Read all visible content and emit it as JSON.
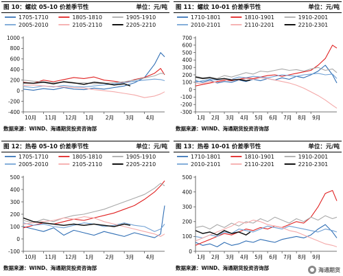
{
  "chart_data": [
    {
      "type": "line",
      "title": "螺纹 05-10 价差季节性",
      "figure_label": "图 10：",
      "unit": "单位：元/吨",
      "source": "数据来源：WIND、海通期货投资咨询部",
      "ylim": [
        -400,
        1000
      ],
      "yticks": [
        -400,
        -200,
        0,
        200,
        400,
        600,
        800,
        1000
      ],
      "categories": [
        "10月",
        "11月",
        "12月",
        "1月",
        "2月",
        "3月",
        "4月"
      ],
      "legend_cols": 3,
      "series": [
        {
          "name": "1705-1710",
          "color": "#2e6db4",
          "width": 1.1,
          "x": [
            0,
            0.5,
            1,
            1.5,
            2,
            2.5,
            3,
            3.5,
            4,
            4.5,
            5,
            5.5,
            6,
            6.5,
            6.8,
            7.0
          ],
          "values": [
            30,
            10,
            40,
            20,
            60,
            30,
            20,
            50,
            30,
            60,
            90,
            150,
            250,
            500,
            720,
            640
          ]
        },
        {
          "name": "1805-1810",
          "color": "#e01f1f",
          "width": 1.1,
          "x": [
            0,
            0.5,
            1,
            1.5,
            2,
            2.5,
            3,
            3.5,
            4,
            4.5,
            5,
            5.5,
            6,
            6.5,
            6.8,
            7.0
          ],
          "values": [
            160,
            140,
            200,
            170,
            210,
            250,
            230,
            260,
            200,
            180,
            150,
            210,
            250,
            330,
            420,
            300
          ]
        },
        {
          "name": "1905-1910",
          "color": "#a8a8a8",
          "width": 1.1,
          "x": [
            0,
            0.5,
            1,
            1.5,
            2,
            2.5,
            3,
            3.5,
            4,
            4.5,
            5,
            5.5,
            6,
            6.5,
            6.8,
            7.0
          ],
          "values": [
            200,
            180,
            170,
            150,
            160,
            140,
            150,
            130,
            140,
            150,
            170,
            200,
            240,
            280,
            330,
            320
          ]
        },
        {
          "name": "2005-2010",
          "color": "#6fa0d4",
          "width": 1.1,
          "x": [
            0,
            0.5,
            1,
            1.5,
            2,
            2.5,
            3,
            3.5,
            4,
            4.5,
            5,
            5.5,
            6,
            6.5,
            6.8,
            7.0
          ],
          "values": [
            80,
            60,
            90,
            70,
            100,
            80,
            70,
            90,
            110,
            130,
            150,
            180,
            200,
            220,
            210,
            190
          ]
        },
        {
          "name": "2105-2110",
          "color": "#f4a8a8",
          "width": 1.1,
          "x": [
            0,
            0.5,
            1,
            1.5,
            2,
            2.5,
            3,
            3.5,
            4,
            4.5,
            5,
            5.5,
            6,
            6.5,
            6.8,
            7.0
          ],
          "values": [
            100,
            110,
            90,
            80,
            70,
            60,
            50,
            20,
            0,
            -20,
            -50,
            -80,
            -130,
            -100,
            -60,
            -20
          ]
        },
        {
          "name": "2205-2210",
          "color": "#111111",
          "width": 1.5,
          "x": [
            0,
            0.5,
            1,
            1.5,
            2,
            2.5,
            3,
            3.5,
            4,
            4.5,
            5,
            5.3
          ],
          "values": [
            150,
            140,
            160,
            130,
            170,
            150,
            120,
            160,
            140,
            110,
            130,
            90
          ]
        }
      ]
    },
    {
      "type": "line",
      "title": "螺纹 10-01 价差季节性",
      "figure_label": "图 11：",
      "unit": "单位：元/吨",
      "source": "数据来源：WIND、海通期货投资咨询部",
      "ylim": [
        -300,
        700
      ],
      "yticks": [
        -300,
        -200,
        -100,
        0,
        100,
        200,
        300,
        400,
        500,
        600,
        700
      ],
      "categories": [
        "1月",
        "2月",
        "3月",
        "4月",
        "5月",
        "6月",
        "7月",
        "8月",
        "9月"
      ],
      "legend_cols": 3,
      "series": [
        {
          "name": "1710-1801",
          "color": "#2e6db4",
          "width": 1.1,
          "x": [
            0,
            0.5,
            1,
            1.5,
            2,
            2.5,
            3,
            3.5,
            4,
            4.5,
            5,
            5.5,
            6,
            6.5,
            7,
            7.5,
            8,
            8.5,
            9,
            9.5,
            9.8
          ],
          "values": [
            120,
            100,
            130,
            90,
            110,
            100,
            130,
            110,
            140,
            120,
            150,
            130,
            160,
            140,
            180,
            160,
            200,
            250,
            330,
            200,
            90
          ]
        },
        {
          "name": "1810-1901",
          "color": "#e01f1f",
          "width": 1.1,
          "x": [
            0,
            0.5,
            1,
            1.5,
            2,
            2.5,
            3,
            3.5,
            4,
            4.5,
            5,
            5.5,
            6,
            6.5,
            7,
            7.5,
            8,
            8.5,
            9,
            9.5,
            9.8
          ],
          "values": [
            50,
            70,
            90,
            110,
            130,
            120,
            140,
            160,
            150,
            170,
            190,
            200,
            180,
            200,
            220,
            240,
            260,
            330,
            420,
            600,
            560
          ]
        },
        {
          "name": "1910-2001",
          "color": "#a8a8a8",
          "width": 1.1,
          "x": [
            0,
            0.5,
            1,
            1.5,
            2,
            2.5,
            3,
            3.5,
            4,
            4.5,
            5,
            5.5,
            6,
            6.5,
            7,
            7.5,
            8,
            8.5,
            9,
            9.5,
            9.8
          ],
          "values": [
            180,
            160,
            170,
            150,
            190,
            170,
            200,
            230,
            210,
            250,
            240,
            260,
            280,
            260,
            270,
            250,
            280,
            300,
            260,
            280,
            230
          ]
        },
        {
          "name": "2010-2101",
          "color": "#6fa0d4",
          "width": 1.1,
          "x": [
            0,
            0.5,
            1,
            1.5,
            2,
            2.5,
            3,
            3.5,
            4,
            4.5,
            5,
            5.5,
            6,
            6.5,
            7,
            7.5,
            8,
            8.5,
            9,
            9.5,
            9.8
          ],
          "values": [
            100,
            120,
            140,
            130,
            150,
            140,
            170,
            160,
            180,
            170,
            160,
            180,
            200,
            190,
            180,
            200,
            210,
            220,
            200,
            210,
            150
          ]
        },
        {
          "name": "2110-2201",
          "color": "#f4a8a8",
          "width": 1.1,
          "x": [
            0,
            0.5,
            1,
            1.5,
            2,
            2.5,
            3,
            3.5,
            4,
            4.5,
            5,
            5.5,
            6,
            6.5,
            7,
            7.5,
            8,
            8.5,
            9,
            9.5,
            9.8
          ],
          "values": [
            90,
            80,
            110,
            100,
            120,
            140,
            130,
            150,
            140,
            160,
            150,
            130,
            110,
            90,
            60,
            20,
            -30,
            -80,
            -140,
            -210,
            -250
          ]
        },
        {
          "name": "2210-2301",
          "color": "#111111",
          "width": 1.5,
          "x": [
            0,
            0.5,
            1,
            1.5,
            2,
            2.5,
            3,
            3.5,
            3.8
          ],
          "values": [
            170,
            150,
            160,
            140,
            150,
            130,
            140,
            120,
            130
          ]
        }
      ]
    },
    {
      "type": "line",
      "title": "热卷 05-10 价差季节性",
      "figure_label": "图 12：",
      "unit": "单位：元/吨",
      "source": "数据来源：WIND、海通期货投资咨询部",
      "ylim": [
        -100,
        500
      ],
      "yticks": [
        -100,
        0,
        100,
        200,
        300,
        400,
        500
      ],
      "categories": [
        "10月",
        "11月",
        "12月",
        "1月",
        "2月",
        "3月",
        "4月"
      ],
      "legend_cols": 3,
      "series": [
        {
          "name": "1705-1710",
          "color": "#2e6db4",
          "width": 1.1,
          "x": [
            0,
            0.5,
            1,
            1.5,
            2,
            2.5,
            3,
            3.5,
            4,
            4.5,
            5,
            5.5,
            6,
            6.5,
            6.8,
            7.0
          ],
          "values": [
            100,
            80,
            60,
            90,
            30,
            70,
            50,
            30,
            60,
            40,
            20,
            50,
            30,
            10,
            40,
            270
          ]
        },
        {
          "name": "1805-1810",
          "color": "#e01f1f",
          "width": 1.1,
          "x": [
            0,
            0.5,
            1,
            1.5,
            2,
            2.5,
            3,
            3.5,
            4,
            4.5,
            5,
            5.5,
            6,
            6.5,
            6.8,
            7.0
          ],
          "values": [
            90,
            110,
            130,
            120,
            140,
            160,
            150,
            170,
            190,
            210,
            240,
            270,
            320,
            380,
            430,
            470
          ]
        },
        {
          "name": "1905-1910",
          "color": "#a8a8a8",
          "width": 1.1,
          "x": [
            0,
            0.5,
            1,
            1.5,
            2,
            2.5,
            3,
            3.5,
            4,
            4.5,
            5,
            5.5,
            6,
            6.5,
            6.8,
            7.0
          ],
          "values": [
            150,
            130,
            160,
            140,
            170,
            190,
            200,
            220,
            240,
            270,
            300,
            330,
            360,
            410,
            450,
            430
          ]
        },
        {
          "name": "2005-2010",
          "color": "#6fa0d4",
          "width": 1.1,
          "x": [
            0,
            0.5,
            1,
            1.5,
            2,
            2.5,
            3,
            3.5,
            4,
            4.5,
            5,
            5.5,
            6,
            6.5,
            6.8,
            7.0
          ],
          "values": [
            130,
            110,
            120,
            100,
            90,
            110,
            130,
            120,
            100,
            110,
            130,
            110,
            100,
            60,
            80,
            120
          ]
        },
        {
          "name": "2105-2110",
          "color": "#f4a8a8",
          "width": 1.1,
          "x": [
            0,
            0.5,
            1,
            1.5,
            2,
            2.5,
            3,
            3.5,
            4,
            4.5,
            5,
            5.5,
            6,
            6.5,
            6.8,
            7.0
          ],
          "values": [
            120,
            130,
            140,
            150,
            170,
            160,
            180,
            170,
            140,
            120,
            100,
            80,
            60,
            40,
            20,
            40
          ]
        },
        {
          "name": "2205-2210",
          "color": "#111111",
          "width": 1.5,
          "x": [
            0,
            0.5,
            1,
            1.5,
            2,
            2.5,
            3,
            3.5,
            4,
            4.5,
            5,
            5.3
          ],
          "values": [
            170,
            140,
            130,
            120,
            110,
            120,
            110,
            120,
            110,
            100,
            120,
            110
          ]
        }
      ]
    },
    {
      "type": "line",
      "title": "热卷 10-01 价差季节性",
      "figure_label": "图 13：",
      "unit": "单位：元/吨",
      "source": "数据来源：WIND、海通期货投资咨询部",
      "ylim": [
        0,
        500
      ],
      "yticks": [
        0,
        100,
        200,
        300,
        400,
        500
      ],
      "categories": [
        "1月",
        "2月",
        "3月",
        "4月",
        "5月",
        "6月",
        "7月",
        "8月",
        "9月"
      ],
      "legend_cols": 3,
      "series": [
        {
          "name": "1710-1801",
          "color": "#2e6db4",
          "width": 1.1,
          "x": [
            0,
            0.5,
            1,
            1.5,
            2,
            2.5,
            3,
            3.5,
            4,
            4.5,
            5,
            5.5,
            6,
            6.5,
            7,
            7.5,
            8,
            8.5,
            9,
            9.5,
            9.8
          ],
          "values": [
            60,
            40,
            50,
            30,
            60,
            40,
            50,
            70,
            60,
            80,
            70,
            60,
            80,
            90,
            100,
            90,
            110,
            150,
            180,
            130,
            90
          ]
        },
        {
          "name": "1810-1901",
          "color": "#e01f1f",
          "width": 1.1,
          "x": [
            0,
            0.5,
            1,
            1.5,
            2,
            2.5,
            3,
            3.5,
            4,
            4.5,
            5,
            5.5,
            6,
            6.5,
            7,
            7.5,
            8,
            8.5,
            9,
            9.5,
            9.8
          ],
          "values": [
            40,
            60,
            80,
            100,
            120,
            110,
            130,
            150,
            140,
            160,
            150,
            170,
            160,
            180,
            200,
            190,
            230,
            300,
            390,
            410,
            340
          ]
        },
        {
          "name": "1910-2001",
          "color": "#a8a8a8",
          "width": 1.1,
          "x": [
            0,
            0.5,
            1,
            1.5,
            2,
            2.5,
            3,
            3.5,
            4,
            4.5,
            5,
            5.5,
            6,
            6.5,
            7,
            7.5,
            8,
            8.5,
            9,
            9.5,
            9.8
          ],
          "values": [
            160,
            170,
            150,
            180,
            160,
            190,
            170,
            200,
            190,
            220,
            200,
            230,
            210,
            190,
            220,
            200,
            230,
            210,
            240,
            220,
            230
          ]
        },
        {
          "name": "2010-2101",
          "color": "#6fa0d4",
          "width": 1.1,
          "x": [
            0,
            0.5,
            1,
            1.5,
            2,
            2.5,
            3,
            3.5,
            4,
            4.5,
            5,
            5.5,
            6,
            6.5,
            7,
            7.5,
            8,
            8.5,
            9,
            9.5,
            9.8
          ],
          "values": [
            100,
            90,
            110,
            100,
            130,
            120,
            150,
            140,
            130,
            150,
            170,
            160,
            150,
            170,
            160,
            150,
            140,
            130,
            150,
            140,
            130
          ]
        },
        {
          "name": "2110-2201",
          "color": "#f4a8a8",
          "width": 1.1,
          "x": [
            0,
            0.5,
            1,
            1.5,
            2,
            2.5,
            3,
            3.5,
            4,
            4.5,
            5,
            5.5,
            6,
            6.5,
            7,
            7.5,
            8,
            8.5,
            9,
            9.5,
            9.8
          ],
          "values": [
            70,
            90,
            110,
            130,
            150,
            170,
            200,
            190,
            210,
            200,
            180,
            170,
            160,
            140,
            130,
            110,
            90,
            70,
            50,
            40,
            30
          ]
        },
        {
          "name": "2210-2301",
          "color": "#111111",
          "width": 1.5,
          "x": [
            0,
            0.5,
            1,
            1.5,
            2,
            2.5,
            3,
            3.5,
            3.8
          ],
          "values": [
            140,
            120,
            130,
            110,
            140,
            120,
            130,
            110,
            130
          ]
        }
      ]
    }
  ],
  "watermark": {
    "text": "海通期货",
    "icon": "wechat-logo-icon"
  }
}
